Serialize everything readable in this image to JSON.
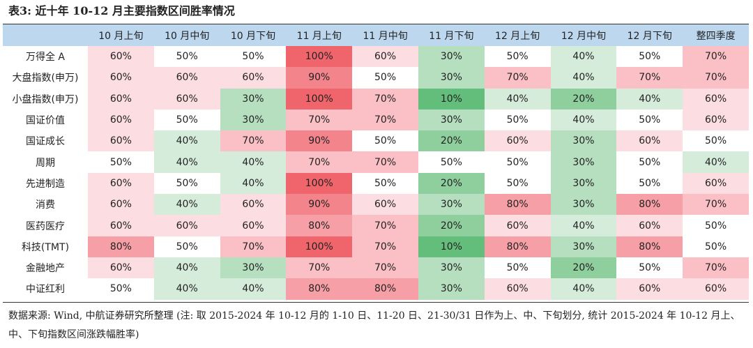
{
  "title": "表3: 近十年 10-12 月主要指数区间胜率情况",
  "chart_data": {
    "type": "table",
    "columns": [
      "10 月上旬",
      "10 月中旬",
      "10 月下旬",
      "11 月上旬",
      "11 月中旬",
      "11 月下旬",
      "12 月上旬",
      "12 月中旬",
      "12 月下旬",
      "整四季度"
    ],
    "rows": [
      {
        "label": "万得全 A",
        "values": [
          60,
          50,
          50,
          100,
          60,
          30,
          50,
          40,
          50,
          70
        ]
      },
      {
        "label": "大盘指数(申万)",
        "values": [
          60,
          60,
          60,
          90,
          50,
          30,
          70,
          40,
          70,
          70
        ]
      },
      {
        "label": "小盘指数(申万)",
        "values": [
          60,
          60,
          30,
          100,
          70,
          10,
          40,
          20,
          40,
          60
        ]
      },
      {
        "label": "国证价值",
        "values": [
          60,
          50,
          30,
          70,
          70,
          30,
          50,
          40,
          50,
          60
        ]
      },
      {
        "label": "国证成长",
        "values": [
          60,
          40,
          70,
          90,
          50,
          20,
          60,
          30,
          60,
          50
        ]
      },
      {
        "label": "周期",
        "values": [
          50,
          40,
          40,
          70,
          70,
          50,
          50,
          30,
          50,
          40
        ]
      },
      {
        "label": "先进制造",
        "values": [
          60,
          50,
          40,
          100,
          50,
          20,
          50,
          30,
          50,
          60
        ]
      },
      {
        "label": "消费",
        "values": [
          60,
          40,
          60,
          90,
          60,
          30,
          80,
          30,
          80,
          70
        ]
      },
      {
        "label": "医药医疗",
        "values": [
          60,
          60,
          60,
          80,
          70,
          20,
          60,
          40,
          60,
          50
        ]
      },
      {
        "label": "科技(TMT)",
        "values": [
          80,
          50,
          70,
          100,
          70,
          10,
          80,
          30,
          80,
          50
        ]
      },
      {
        "label": "金融地产",
        "values": [
          60,
          40,
          30,
          70,
          70,
          30,
          50,
          20,
          50,
          70
        ]
      },
      {
        "label": "中证红利",
        "values": [
          50,
          40,
          40,
          80,
          80,
          30,
          60,
          40,
          60,
          60
        ]
      }
    ],
    "unit_suffix": "%"
  },
  "colors": {
    "header_bg": "#bdd7ee",
    "v10": "#63be7b",
    "v20": "#8fcf9d",
    "v30": "#b5dfbf",
    "v40": "#d6ecdb",
    "v50": "#ffffff",
    "v60": "#fcdde1",
    "v70": "#fac0c5",
    "v80": "#f79fa6",
    "v90": "#f4848b",
    "v100": "#f0656b"
  },
  "note": "数据来源: Wind, 中航证券研究所整理 (注: 取 2015-2024 年 10-12 月的 1-10 日、11-20 日、21-30/31 日作为上、中、下旬划分, 统计 2015-2024 年 10-12 月上、中、下旬指数区间涨跌幅胜率)"
}
